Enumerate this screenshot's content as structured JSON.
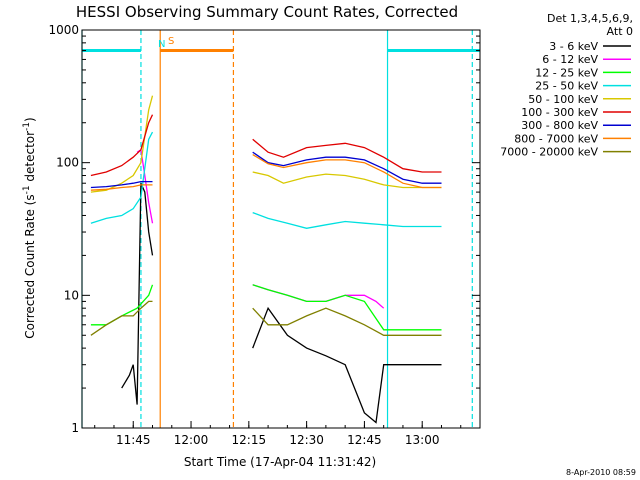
{
  "chart_data": {
    "type": "line",
    "title": "HESSI Observing Summary Count Rates, Corrected",
    "xlabel": "Start Time (17-Apr-04 11:31:42)",
    "ylabel": "Corrected Count Rate (s-1 detector-1)",
    "ylabel_parts": {
      "base": "Corrected Count Rate (s",
      "sup1": "-1",
      "mid": " detector",
      "sup2": "-1",
      "end": ")"
    },
    "y_scale": "log",
    "ylim": [
      1,
      1000
    ],
    "xlim": [
      "11:31:42",
      "13:15:00"
    ],
    "x_ticks": [
      "11:45",
      "12:00",
      "12:15",
      "12:30",
      "12:45",
      "13:00"
    ],
    "y_ticks": [
      "1",
      "10",
      "100",
      "1000"
    ],
    "legend_header": [
      "Det 1,3,4,5,6,9,",
      "Att 0"
    ],
    "legend_position": "right",
    "markers": [
      {
        "label": "N",
        "color": "#00e0e0"
      },
      {
        "label": "S",
        "color": "#ff8000"
      }
    ],
    "colors": {
      "black": "#000000",
      "magenta": "#ff00ff",
      "green": "#00ff00",
      "cyan": "#00e0e0",
      "yellow": "#d8c800",
      "red": "#e00000",
      "blue": "#0000d0",
      "orange": "#ff8000",
      "olive": "#808000"
    },
    "series": [
      {
        "name": "3 - 6 keV",
        "color": "#000000",
        "x": [
          "11:42",
          "11:44",
          "11:45",
          "11:46",
          "11:47",
          "11:48",
          "11:49",
          "11:50",
          "12:16",
          "12:20",
          "12:25",
          "12:30",
          "12:35",
          "12:40",
          "12:45",
          "12:48",
          "12:50",
          "12:55",
          "13:00",
          "13:05"
        ],
        "y": [
          2.0,
          2.5,
          3.0,
          1.5,
          70,
          60,
          30,
          20,
          4,
          8,
          5,
          4,
          3.5,
          3,
          1.3,
          1.1,
          3,
          3,
          3,
          3
        ]
      },
      {
        "name": "6 - 12 keV",
        "color": "#ff00ff",
        "x": [
          "11:46",
          "11:47",
          "11:48",
          "11:49",
          "11:50",
          "12:16",
          "12:20",
          "12:25",
          "12:30",
          "12:35",
          "12:40",
          "12:45",
          "12:48",
          "12:50"
        ],
        "y": [
          120,
          125,
          80,
          50,
          35,
          12,
          11,
          10,
          9,
          9,
          10,
          10,
          9,
          8
        ]
      },
      {
        "name": "12 - 25 keV",
        "color": "#00ff00",
        "x": [
          "11:34",
          "11:38",
          "11:42",
          "11:46",
          "11:49",
          "11:50",
          "12:16",
          "12:20",
          "12:25",
          "12:30",
          "12:35",
          "12:40",
          "12:45",
          "12:50",
          "12:55",
          "13:00",
          "13:05"
        ],
        "y": [
          6,
          6,
          7,
          8,
          10,
          12,
          12,
          11,
          10,
          9,
          9,
          10,
          9,
          5.5,
          5.5,
          5.5,
          5.5
        ]
      },
      {
        "name": "25 - 50 keV",
        "color": "#00e0e0",
        "x": [
          "11:34",
          "11:38",
          "11:42",
          "11:45",
          "11:47",
          "11:49",
          "11:50",
          "12:16",
          "12:20",
          "12:25",
          "12:30",
          "12:35",
          "12:40",
          "12:45",
          "12:50",
          "12:55",
          "13:00",
          "13:05"
        ],
        "y": [
          35,
          38,
          40,
          45,
          55,
          150,
          170,
          42,
          38,
          35,
          32,
          34,
          36,
          35,
          34,
          33,
          33,
          33
        ]
      },
      {
        "name": "50 - 100 keV",
        "color": "#d8c800",
        "x": [
          "11:34",
          "11:38",
          "11:42",
          "11:45",
          "11:47",
          "11:49",
          "11:50",
          "12:16",
          "12:20",
          "12:24",
          "12:30",
          "12:35",
          "12:40",
          "12:45",
          "12:50",
          "12:55",
          "13:00",
          "13:05"
        ],
        "y": [
          60,
          62,
          70,
          80,
          100,
          250,
          320,
          85,
          80,
          70,
          78,
          82,
          80,
          75,
          68,
          65,
          65,
          65
        ]
      },
      {
        "name": "100 - 300 keV",
        "color": "#e00000",
        "x": [
          "11:34",
          "11:38",
          "11:42",
          "11:45",
          "11:47",
          "11:49",
          "11:50",
          "12:16",
          "12:20",
          "12:24",
          "12:30",
          "12:35",
          "12:40",
          "12:45",
          "12:50",
          "12:55",
          "13:00",
          "13:05"
        ],
        "y": [
          80,
          85,
          95,
          110,
          125,
          200,
          230,
          150,
          120,
          110,
          130,
          135,
          140,
          130,
          110,
          90,
          85,
          85
        ]
      },
      {
        "name": "300 - 800 keV",
        "color": "#0000d0",
        "x": [
          "11:34",
          "11:38",
          "11:42",
          "11:45",
          "11:47",
          "11:49",
          "11:50",
          "12:16",
          "12:20",
          "12:24",
          "12:30",
          "12:35",
          "12:40",
          "12:45",
          "12:50",
          "12:55",
          "13:00",
          "13:05"
        ],
        "y": [
          65,
          66,
          68,
          70,
          72,
          72,
          72,
          120,
          100,
          95,
          105,
          110,
          110,
          105,
          90,
          75,
          70,
          70
        ]
      },
      {
        "name": "800 - 7000 keV",
        "color": "#ff8000",
        "x": [
          "11:34",
          "11:38",
          "11:42",
          "11:45",
          "11:47",
          "11:49",
          "11:50",
          "12:16",
          "12:20",
          "12:24",
          "12:30",
          "12:35",
          "12:40",
          "12:45",
          "12:50",
          "12:55",
          "13:00",
          "13:05"
        ],
        "y": [
          62,
          63,
          65,
          66,
          68,
          68,
          68,
          115,
          98,
          92,
          100,
          105,
          105,
          100,
          85,
          70,
          65,
          65
        ]
      },
      {
        "name": "7000 - 20000 keV",
        "color": "#808000",
        "x": [
          "11:34",
          "11:38",
          "11:42",
          "11:45",
          "11:47",
          "11:49",
          "11:50",
          "12:16",
          "12:20",
          "12:25",
          "12:30",
          "12:35",
          "12:40",
          "12:45",
          "12:50",
          "12:55",
          "13:00",
          "13:05"
        ],
        "y": [
          5,
          6,
          7,
          7,
          8,
          9,
          9,
          8,
          6,
          6,
          7,
          8,
          7,
          6,
          5,
          5,
          5,
          5
        ]
      }
    ],
    "spans": [
      {
        "name": "night",
        "color": "#00e0e0",
        "from": "11:31:42",
        "to": "11:47",
        "level": 700
      },
      {
        "name": "saa",
        "color": "#ff8000",
        "from": "11:52",
        "to": "12:11",
        "level": 700
      },
      {
        "name": "night",
        "color": "#00e0e0",
        "from": "12:51",
        "to": "13:15",
        "level": 700
      }
    ],
    "vlines": [
      {
        "t": "11:31:42",
        "color": "#00e0e0",
        "dash": false
      },
      {
        "t": "11:47",
        "color": "#00e0e0",
        "dash": true
      },
      {
        "t": "11:52",
        "color": "#ff8000",
        "dash": false
      },
      {
        "t": "12:11",
        "color": "#ff8000",
        "dash": true
      },
      {
        "t": "12:51",
        "color": "#00e0e0",
        "dash": false
      },
      {
        "t": "13:13",
        "color": "#00e0e0",
        "dash": true
      }
    ],
    "grid": false
  },
  "footer": {
    "timestamp": "8-Apr-2010 08:59"
  }
}
